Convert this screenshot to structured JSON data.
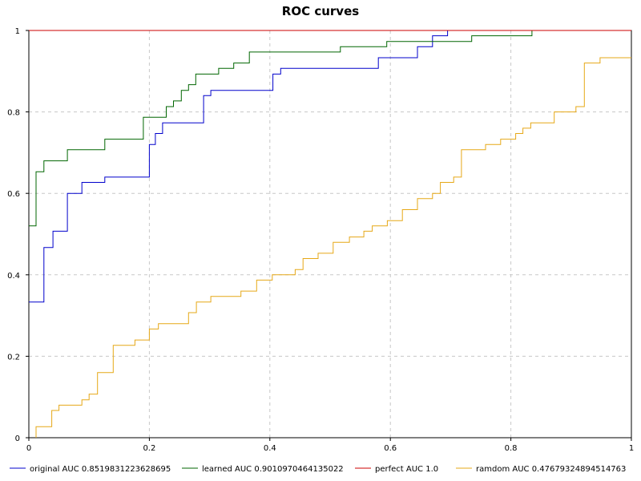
{
  "chart_data": {
    "type": "line",
    "title": "ROC curves",
    "xlabel": "",
    "ylabel": "",
    "xlim": [
      0,
      1
    ],
    "ylim": [
      0,
      1
    ],
    "grid": true,
    "legend_position": "bottom",
    "x_ticks": [
      "0",
      "0.2",
      "0.4",
      "0.6",
      "0.8",
      "1"
    ],
    "y_ticks": [
      "0",
      "0.2",
      "0.4",
      "0.6",
      "0.8",
      "1"
    ],
    "series": [
      {
        "name": "original AUC 0.8519831223628695",
        "color": "#0000cc",
        "step": true,
        "points": [
          [
            0,
            0.333
          ],
          [
            0.025,
            0.333
          ],
          [
            0.025,
            0.467
          ],
          [
            0.04,
            0.467
          ],
          [
            0.04,
            0.507
          ],
          [
            0.064,
            0.507
          ],
          [
            0.064,
            0.6
          ],
          [
            0.088,
            0.6
          ],
          [
            0.088,
            0.627
          ],
          [
            0.126,
            0.627
          ],
          [
            0.126,
            0.64
          ],
          [
            0.2,
            0.64
          ],
          [
            0.2,
            0.72
          ],
          [
            0.21,
            0.72
          ],
          [
            0.21,
            0.747
          ],
          [
            0.222,
            0.747
          ],
          [
            0.222,
            0.773
          ],
          [
            0.29,
            0.773
          ],
          [
            0.29,
            0.84
          ],
          [
            0.302,
            0.84
          ],
          [
            0.302,
            0.853
          ],
          [
            0.405,
            0.853
          ],
          [
            0.405,
            0.893
          ],
          [
            0.418,
            0.893
          ],
          [
            0.418,
            0.907
          ],
          [
            0.58,
            0.907
          ],
          [
            0.58,
            0.933
          ],
          [
            0.645,
            0.933
          ],
          [
            0.645,
            0.96
          ],
          [
            0.67,
            0.96
          ],
          [
            0.67,
            0.987
          ],
          [
            0.695,
            0.987
          ],
          [
            0.695,
            1
          ],
          [
            1,
            1
          ]
        ]
      },
      {
        "name": "learned AUC 0.9010970464135022",
        "color": "#006600",
        "step": true,
        "points": [
          [
            0,
            0.52
          ],
          [
            0.012,
            0.52
          ],
          [
            0.012,
            0.653
          ],
          [
            0.025,
            0.653
          ],
          [
            0.025,
            0.68
          ],
          [
            0.064,
            0.68
          ],
          [
            0.064,
            0.707
          ],
          [
            0.126,
            0.707
          ],
          [
            0.126,
            0.733
          ],
          [
            0.19,
            0.733
          ],
          [
            0.19,
            0.787
          ],
          [
            0.228,
            0.787
          ],
          [
            0.228,
            0.813
          ],
          [
            0.24,
            0.813
          ],
          [
            0.24,
            0.827
          ],
          [
            0.253,
            0.827
          ],
          [
            0.253,
            0.853
          ],
          [
            0.265,
            0.853
          ],
          [
            0.265,
            0.867
          ],
          [
            0.277,
            0.867
          ],
          [
            0.277,
            0.893
          ],
          [
            0.315,
            0.893
          ],
          [
            0.315,
            0.907
          ],
          [
            0.34,
            0.907
          ],
          [
            0.34,
            0.92
          ],
          [
            0.366,
            0.92
          ],
          [
            0.366,
            0.947
          ],
          [
            0.517,
            0.947
          ],
          [
            0.517,
            0.96
          ],
          [
            0.594,
            0.96
          ],
          [
            0.594,
            0.973
          ],
          [
            0.735,
            0.973
          ],
          [
            0.735,
            0.987
          ],
          [
            0.835,
            0.987
          ],
          [
            0.835,
            1
          ],
          [
            1,
            1
          ]
        ]
      },
      {
        "name": "perfect AUC 1.0",
        "color": "#cc0000",
        "step": true,
        "points": [
          [
            0,
            1
          ],
          [
            1,
            1
          ]
        ]
      },
      {
        "name": "ramdom AUC 0.47679324894514763",
        "color": "#e6a817",
        "step": true,
        "points": [
          [
            0.012,
            0
          ],
          [
            0.012,
            0.027
          ],
          [
            0.038,
            0.027
          ],
          [
            0.038,
            0.067
          ],
          [
            0.05,
            0.067
          ],
          [
            0.05,
            0.08
          ],
          [
            0.088,
            0.08
          ],
          [
            0.088,
            0.093
          ],
          [
            0.1,
            0.093
          ],
          [
            0.1,
            0.107
          ],
          [
            0.114,
            0.107
          ],
          [
            0.114,
            0.16
          ],
          [
            0.14,
            0.16
          ],
          [
            0.14,
            0.227
          ],
          [
            0.176,
            0.227
          ],
          [
            0.176,
            0.24
          ],
          [
            0.2,
            0.24
          ],
          [
            0.2,
            0.267
          ],
          [
            0.215,
            0.267
          ],
          [
            0.215,
            0.28
          ],
          [
            0.265,
            0.28
          ],
          [
            0.265,
            0.307
          ],
          [
            0.278,
            0.307
          ],
          [
            0.278,
            0.333
          ],
          [
            0.302,
            0.333
          ],
          [
            0.302,
            0.347
          ],
          [
            0.352,
            0.347
          ],
          [
            0.352,
            0.36
          ],
          [
            0.378,
            0.36
          ],
          [
            0.378,
            0.387
          ],
          [
            0.404,
            0.387
          ],
          [
            0.404,
            0.4
          ],
          [
            0.442,
            0.4
          ],
          [
            0.442,
            0.413
          ],
          [
            0.455,
            0.413
          ],
          [
            0.455,
            0.44
          ],
          [
            0.48,
            0.44
          ],
          [
            0.48,
            0.453
          ],
          [
            0.505,
            0.453
          ],
          [
            0.505,
            0.48
          ],
          [
            0.532,
            0.48
          ],
          [
            0.532,
            0.493
          ],
          [
            0.556,
            0.493
          ],
          [
            0.556,
            0.507
          ],
          [
            0.57,
            0.507
          ],
          [
            0.57,
            0.52
          ],
          [
            0.595,
            0.52
          ],
          [
            0.595,
            0.533
          ],
          [
            0.62,
            0.533
          ],
          [
            0.62,
            0.56
          ],
          [
            0.645,
            0.56
          ],
          [
            0.645,
            0.587
          ],
          [
            0.67,
            0.587
          ],
          [
            0.67,
            0.6
          ],
          [
            0.683,
            0.6
          ],
          [
            0.683,
            0.627
          ],
          [
            0.705,
            0.627
          ],
          [
            0.705,
            0.64
          ],
          [
            0.718,
            0.64
          ],
          [
            0.718,
            0.707
          ],
          [
            0.758,
            0.707
          ],
          [
            0.758,
            0.72
          ],
          [
            0.783,
            0.72
          ],
          [
            0.783,
            0.733
          ],
          [
            0.808,
            0.733
          ],
          [
            0.808,
            0.747
          ],
          [
            0.82,
            0.747
          ],
          [
            0.82,
            0.76
          ],
          [
            0.833,
            0.76
          ],
          [
            0.833,
            0.773
          ],
          [
            0.872,
            0.773
          ],
          [
            0.872,
            0.8
          ],
          [
            0.908,
            0.8
          ],
          [
            0.908,
            0.813
          ],
          [
            0.922,
            0.813
          ],
          [
            0.922,
            0.92
          ],
          [
            0.948,
            0.92
          ],
          [
            0.948,
            0.933
          ],
          [
            1,
            0.933
          ]
        ]
      }
    ]
  }
}
